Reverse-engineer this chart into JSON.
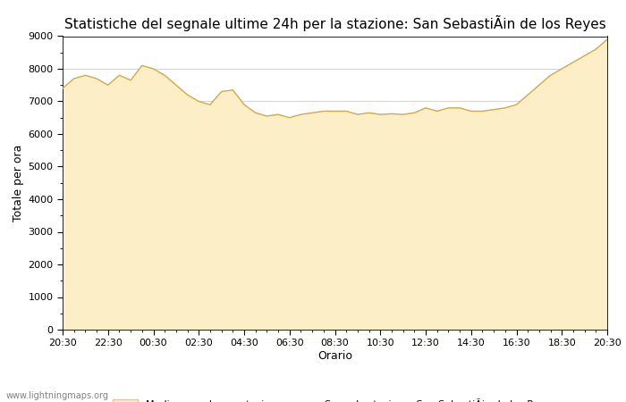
{
  "title": "Statistiche del segnale ultime 24h per la stazione: San SebastiÃin de los Reyes",
  "xlabel": "Orario",
  "ylabel": "Totale per ora",
  "ylim": [
    0,
    9000
  ],
  "yticks": [
    0,
    1000,
    2000,
    3000,
    4000,
    5000,
    6000,
    7000,
    8000,
    9000
  ],
  "xtick_labels": [
    "20:30",
    "22:30",
    "00:30",
    "02:30",
    "04:30",
    "06:30",
    "08:30",
    "10:30",
    "12:30",
    "14:30",
    "16:30",
    "18:30",
    "20:30"
  ],
  "fill_color": "#FCEFC7",
  "fill_edge_color": "#E8C97A",
  "line_color": "#D4A844",
  "background_color": "#ffffff",
  "grid_color": "#cccccc",
  "title_fontsize": 11,
  "axis_fontsize": 8,
  "legend_label_fill": "Media segnale per stazione",
  "legend_label_line": "Segnale stazione: San SebastiÃin de los Reyes",
  "watermark": "www.lightningmaps.org",
  "x_values": [
    0,
    0.5,
    1.0,
    1.5,
    2.0,
    2.5,
    3.0,
    3.5,
    4.0,
    4.5,
    5.0,
    5.5,
    6.0,
    6.5,
    7.0,
    7.5,
    8.0,
    8.5,
    9.0,
    9.5,
    10.0,
    10.5,
    11.0,
    11.5,
    12.0,
    12.5,
    13.0,
    13.5,
    14.0,
    14.5,
    15.0,
    15.5,
    16.0,
    16.5,
    17.0,
    17.5,
    18.0,
    18.5,
    19.0,
    19.5,
    20.0,
    20.5,
    21.0,
    21.5,
    22.0,
    22.5,
    23.0,
    23.5,
    24.0
  ],
  "y_values": [
    7400,
    7700,
    7800,
    7700,
    7500,
    7800,
    7650,
    8100,
    8000,
    7800,
    7500,
    7200,
    7000,
    6900,
    7300,
    7350,
    6900,
    6650,
    6550,
    6600,
    6500,
    6600,
    6650,
    6700,
    6700,
    6700,
    6600,
    6650,
    6600,
    6620,
    6600,
    6650,
    6800,
    6700,
    6800,
    6800,
    6700,
    6700,
    6750,
    6800,
    6900,
    7200,
    7500,
    7800,
    8000,
    8200,
    8400,
    8600,
    8900
  ]
}
